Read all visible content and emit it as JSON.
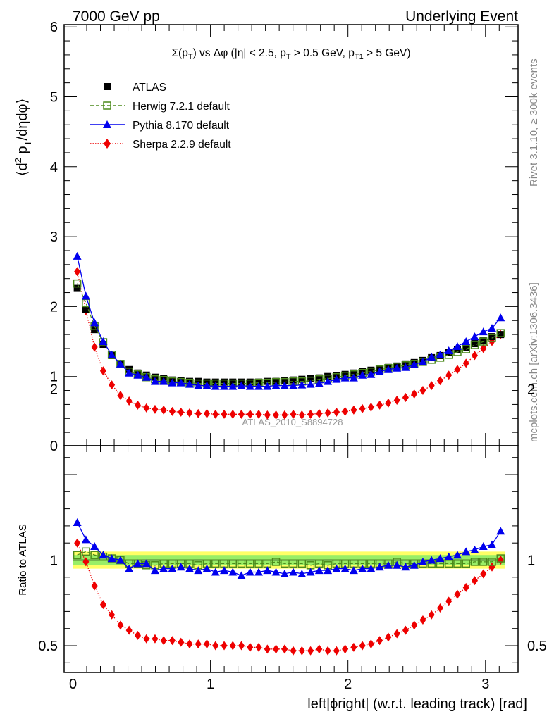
{
  "header": {
    "left": "7000 GeV pp",
    "right": "Underlying Event"
  },
  "side_labels": {
    "rivet": "Rivet 3.1.10, ≥ 300k events",
    "mcplots": "mcplots.cern.ch [arXiv:1306.3436]"
  },
  "watermark": "ATLAS_2010_S8894728",
  "colors": {
    "atlas": "#000000",
    "herwig": "#4c8a1c",
    "pythia": "#0000ee",
    "sherpa": "#ee0000",
    "band_outer": "#ffff66",
    "band_inner": "#99ee66"
  },
  "chart_data": [
    {
      "type": "scatter",
      "panel": "main",
      "title_parts": {
        "sigma": "Σ(p",
        "sub_T": "T",
        "mid": ") vs Δφ (|η| < 2.5, p",
        "sub_T2": "T",
        "mid2": " > 0.5 GeV, p",
        "sub_T1": "T1",
        "end": " > 5 GeV)"
      },
      "ylabel_parts": {
        "a": "⟨d",
        "sup2": "2",
        "b": " p",
        "subT": "T",
        "c": "/dηdφ⟩"
      },
      "xlim": [
        0,
        3.1416
      ],
      "ylim": [
        0,
        6
      ],
      "yticks": [
        "0",
        "1",
        "2",
        "3",
        "4",
        "5",
        "6"
      ],
      "x": [
        0.0314,
        0.0942,
        0.1571,
        0.2199,
        0.2827,
        0.3456,
        0.4084,
        0.4712,
        0.5341,
        0.5969,
        0.6597,
        0.7226,
        0.7854,
        0.8482,
        0.9111,
        0.9739,
        1.0367,
        1.0996,
        1.1624,
        1.2252,
        1.2881,
        1.3509,
        1.4137,
        1.4765,
        1.5394,
        1.6022,
        1.665,
        1.7279,
        1.7907,
        1.8535,
        1.9164,
        1.9792,
        2.042,
        2.1049,
        2.1677,
        2.2305,
        2.2934,
        2.3562,
        2.419,
        2.4819,
        2.5447,
        2.6075,
        2.6704,
        2.7332,
        2.796,
        2.8588,
        2.9217,
        2.9845,
        3.0473,
        3.1102
      ],
      "series": [
        {
          "name": "ATLAS",
          "marker": "square",
          "values": [
            2.26,
            1.96,
            1.67,
            1.46,
            1.3,
            1.18,
            1.1,
            1.05,
            1.02,
            0.99,
            0.97,
            0.95,
            0.94,
            0.93,
            0.93,
            0.92,
            0.92,
            0.92,
            0.92,
            0.92,
            0.92,
            0.92,
            0.93,
            0.93,
            0.94,
            0.95,
            0.96,
            0.97,
            0.98,
            1.0,
            1.01,
            1.03,
            1.05,
            1.07,
            1.09,
            1.11,
            1.13,
            1.15,
            1.18,
            1.2,
            1.23,
            1.27,
            1.3,
            1.34,
            1.38,
            1.42,
            1.47,
            1.52,
            1.57,
            1.6
          ]
        },
        {
          "name": "Herwig 7.2.1 default",
          "marker": "open-square",
          "values": [
            2.33,
            2.05,
            1.72,
            1.49,
            1.31,
            1.18,
            1.07,
            1.03,
            0.99,
            0.96,
            0.95,
            0.93,
            0.92,
            0.91,
            0.9,
            0.9,
            0.9,
            0.9,
            0.9,
            0.9,
            0.9,
            0.91,
            0.91,
            0.92,
            0.92,
            0.93,
            0.93,
            0.94,
            0.96,
            0.97,
            0.99,
            1.01,
            1.03,
            1.05,
            1.07,
            1.1,
            1.12,
            1.14,
            1.16,
            1.18,
            1.21,
            1.24,
            1.27,
            1.31,
            1.35,
            1.39,
            1.45,
            1.5,
            1.55,
            1.62
          ]
        },
        {
          "name": "Pythia 8.170 default",
          "marker": "triangle",
          "values": [
            2.72,
            2.15,
            1.77,
            1.5,
            1.31,
            1.18,
            1.05,
            1.02,
            0.99,
            0.93,
            0.93,
            0.91,
            0.91,
            0.89,
            0.87,
            0.87,
            0.86,
            0.86,
            0.86,
            0.87,
            0.86,
            0.86,
            0.86,
            0.87,
            0.87,
            0.87,
            0.88,
            0.89,
            0.9,
            0.93,
            0.96,
            0.98,
            0.98,
            1.02,
            1.03,
            1.07,
            1.1,
            1.12,
            1.13,
            1.17,
            1.21,
            1.28,
            1.31,
            1.37,
            1.43,
            1.5,
            1.57,
            1.64,
            1.69,
            1.84
          ]
        },
        {
          "name": "Sherpa 2.2.9 default",
          "marker": "diamond",
          "values": [
            2.5,
            1.94,
            1.42,
            1.08,
            0.88,
            0.73,
            0.65,
            0.59,
            0.55,
            0.53,
            0.52,
            0.5,
            0.49,
            0.48,
            0.47,
            0.47,
            0.46,
            0.46,
            0.46,
            0.46,
            0.46,
            0.46,
            0.45,
            0.45,
            0.45,
            0.46,
            0.45,
            0.46,
            0.47,
            0.48,
            0.49,
            0.5,
            0.52,
            0.54,
            0.56,
            0.59,
            0.62,
            0.66,
            0.7,
            0.75,
            0.8,
            0.87,
            0.94,
            1.02,
            1.1,
            1.19,
            1.3,
            1.4,
            1.5,
            1.6
          ]
        }
      ],
      "legend_position": "top-left"
    },
    {
      "type": "scatter",
      "panel": "ratio",
      "ylabel": "Ratio to ATLAS",
      "xlabel": "left|ϕright| (w.r.t. leading track) [rad]",
      "xlim": [
        0,
        3.1416
      ],
      "ylim": [
        0.3,
        2.3
      ],
      "xticks": [
        "0",
        "1",
        "2",
        "3"
      ],
      "yticks": [
        "0.5",
        "1",
        "2"
      ],
      "x": [
        0.0314,
        0.0942,
        0.1571,
        0.2199,
        0.2827,
        0.3456,
        0.4084,
        0.4712,
        0.5341,
        0.5969,
        0.6597,
        0.7226,
        0.7854,
        0.8482,
        0.9111,
        0.9739,
        1.0367,
        1.0996,
        1.1624,
        1.2252,
        1.2881,
        1.3509,
        1.4137,
        1.4765,
        1.5394,
        1.6022,
        1.665,
        1.7279,
        1.7907,
        1.8535,
        1.9164,
        1.9792,
        2.042,
        2.1049,
        2.1677,
        2.2305,
        2.2934,
        2.3562,
        2.419,
        2.4819,
        2.5447,
        2.6075,
        2.6704,
        2.7332,
        2.796,
        2.8588,
        2.9217,
        2.9845,
        3.0473,
        3.1102
      ],
      "band": {
        "outer": [
          0.95,
          1.05
        ],
        "inner": [
          0.97,
          1.03
        ]
      },
      "series": [
        {
          "name": "Herwig 7.2.1 default",
          "marker": "open-square",
          "values": [
            1.03,
            1.05,
            1.03,
            1.02,
            1.01,
            1.0,
            0.98,
            0.98,
            0.97,
            0.97,
            0.98,
            0.98,
            0.98,
            0.98,
            0.97,
            0.98,
            0.98,
            0.98,
            0.98,
            0.98,
            0.98,
            0.98,
            0.98,
            0.99,
            0.98,
            0.98,
            0.98,
            0.97,
            0.98,
            0.97,
            0.98,
            0.98,
            0.98,
            0.98,
            0.98,
            0.98,
            0.98,
            0.99,
            0.98,
            0.98,
            0.98,
            0.98,
            0.98,
            0.98,
            0.98,
            0.98,
            0.99,
            0.99,
            0.99,
            1.01
          ]
        },
        {
          "name": "Pythia 8.170 default",
          "marker": "triangle",
          "values": [
            1.22,
            1.12,
            1.08,
            1.03,
            1.01,
            1.0,
            0.95,
            0.98,
            0.98,
            0.94,
            0.95,
            0.95,
            0.96,
            0.95,
            0.94,
            0.95,
            0.93,
            0.94,
            0.93,
            0.91,
            0.93,
            0.93,
            0.94,
            0.93,
            0.92,
            0.93,
            0.92,
            0.93,
            0.94,
            0.94,
            0.95,
            0.95,
            0.94,
            0.95,
            0.95,
            0.96,
            0.97,
            0.97,
            0.96,
            0.97,
            0.99,
            1.0,
            1.01,
            1.02,
            1.03,
            1.05,
            1.06,
            1.08,
            1.09,
            1.17
          ]
        },
        {
          "name": "Sherpa 2.2.9 default",
          "marker": "diamond",
          "values": [
            1.1,
            0.99,
            0.85,
            0.74,
            0.68,
            0.62,
            0.59,
            0.56,
            0.54,
            0.54,
            0.53,
            0.53,
            0.52,
            0.51,
            0.51,
            0.51,
            0.5,
            0.5,
            0.5,
            0.5,
            0.49,
            0.49,
            0.48,
            0.48,
            0.48,
            0.47,
            0.47,
            0.47,
            0.48,
            0.47,
            0.47,
            0.48,
            0.49,
            0.5,
            0.51,
            0.53,
            0.55,
            0.57,
            0.59,
            0.62,
            0.65,
            0.68,
            0.72,
            0.76,
            0.8,
            0.84,
            0.88,
            0.92,
            0.96,
            1.0
          ]
        }
      ]
    }
  ]
}
